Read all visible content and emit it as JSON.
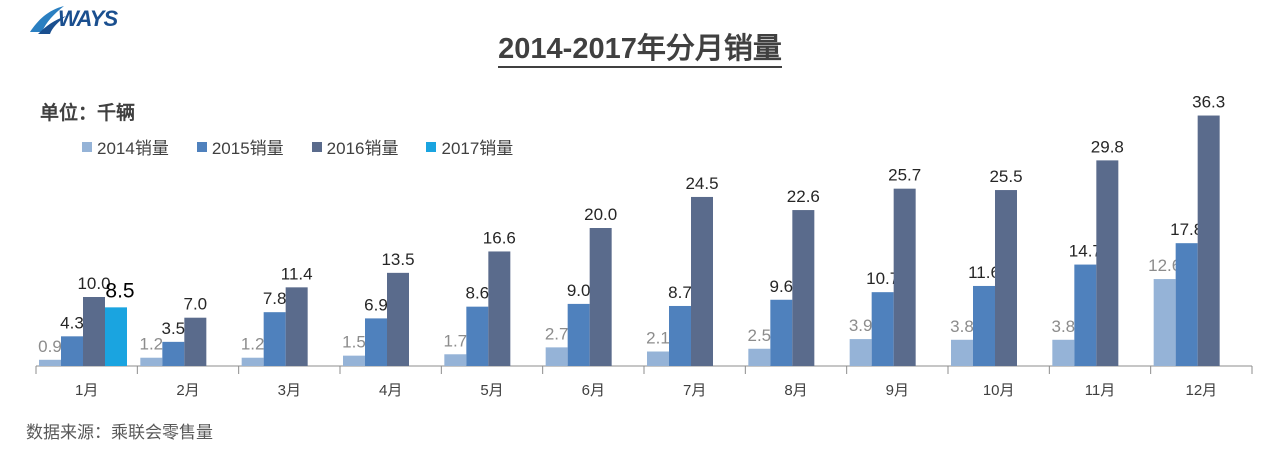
{
  "brand": {
    "logo_text": "WAYS"
  },
  "colors": {
    "s2014": "#95b3d7",
    "s2015": "#4f81bd",
    "s2016": "#5a6b8c",
    "s2017": "#1aa4e0"
  },
  "chart_data": {
    "type": "bar",
    "title": "2014-2017年分月销量",
    "unit_label": "单位：千辆",
    "source": "数据来源：乘联会零售量",
    "categories": [
      "1月",
      "2月",
      "3月",
      "4月",
      "5月",
      "6月",
      "7月",
      "8月",
      "9月",
      "10月",
      "11月",
      "12月"
    ],
    "ylim": [
      0,
      40
    ],
    "legend_position": "top-left",
    "grid": false,
    "series": [
      {
        "name": "2014销量",
        "values": [
          0.9,
          1.2,
          1.2,
          1.5,
          1.7,
          2.7,
          2.1,
          2.5,
          3.9,
          3.8,
          3.8,
          12.6
        ]
      },
      {
        "name": "2015销量",
        "values": [
          4.3,
          3.5,
          7.8,
          6.9,
          8.6,
          9.0,
          8.7,
          9.6,
          10.7,
          11.6,
          14.7,
          17.8
        ]
      },
      {
        "name": "2016销量",
        "values": [
          10.0,
          7.0,
          11.4,
          13.5,
          16.6,
          20.0,
          24.5,
          22.6,
          25.7,
          25.5,
          29.8,
          36.3
        ]
      },
      {
        "name": "2017销量",
        "values": [
          8.5,
          null,
          null,
          null,
          null,
          null,
          null,
          null,
          null,
          null,
          null,
          null
        ]
      }
    ]
  }
}
